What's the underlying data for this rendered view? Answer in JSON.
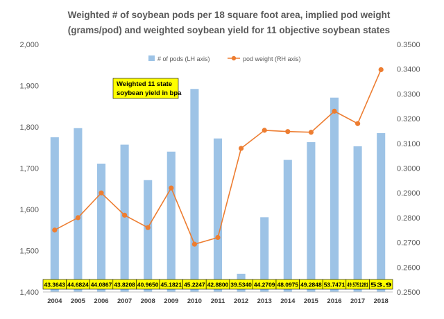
{
  "chart_data": {
    "type": "bar",
    "title_lines": [
      "Weighted # of soybean pods per 18 square foot area, implied pod weight",
      "(grams/pod) and weighted soybean yield for 11 objective soybean states"
    ],
    "categories": [
      "2004",
      "2005",
      "2006",
      "2007",
      "2008",
      "2009",
      "2010",
      "2011",
      "2012",
      "2013",
      "2014",
      "2015",
      "2016",
      "2017",
      "2018"
    ],
    "series": [
      {
        "name": "# of pods (LH axis)",
        "type": "bar",
        "axis": "left",
        "color": "#9dc3e6",
        "values": [
          1775,
          1797,
          1711,
          1757,
          1671,
          1740,
          1892,
          1772,
          1444,
          1581,
          1720,
          1763,
          1871,
          1753,
          1785
        ]
      },
      {
        "name": "pod weight (RH axis)",
        "type": "line",
        "axis": "right",
        "color": "#ed7d31",
        "values": [
          0.275,
          0.28,
          0.29,
          0.281,
          0.276,
          0.292,
          0.2693,
          0.272,
          0.308,
          0.3153,
          0.3148,
          0.3145,
          0.323,
          0.318,
          0.3398
        ]
      }
    ],
    "yield_labels": [
      "43.3643",
      "44.6824",
      "44.0867",
      "43.8208",
      "40.9650",
      "45.1821",
      "45.2247",
      "42.8800",
      "39.5340",
      "44.2709",
      "48.0975",
      "49.2848",
      "53.7471",
      "49.5751281",
      "53.9"
    ],
    "note_lines": [
      "Weighted 11 state",
      "soybean yield in bpa"
    ],
    "y_left": {
      "range": [
        1400,
        2000
      ],
      "ticks": [
        1400,
        1500,
        1600,
        1700,
        1800,
        1900,
        2000
      ],
      "tick_labels": [
        "1,400",
        "1,500",
        "1,600",
        "1,700",
        "1,800",
        "1,900",
        "2,000"
      ]
    },
    "y_right": {
      "range": [
        0.25,
        0.35
      ],
      "ticks": [
        0.25,
        0.26,
        0.27,
        0.28,
        0.29,
        0.3,
        0.31,
        0.32,
        0.33,
        0.34,
        0.35
      ],
      "tick_labels": [
        "0.2500",
        "0.2600",
        "0.2700",
        "0.2800",
        "0.2900",
        "0.3000",
        "0.3100",
        "0.3200",
        "0.3300",
        "0.3400",
        "0.3500"
      ]
    },
    "legend_position": "top",
    "grid": false,
    "colors": {
      "label_box_fill": "#ffff00",
      "axis_line": "#bfbfbf"
    }
  }
}
